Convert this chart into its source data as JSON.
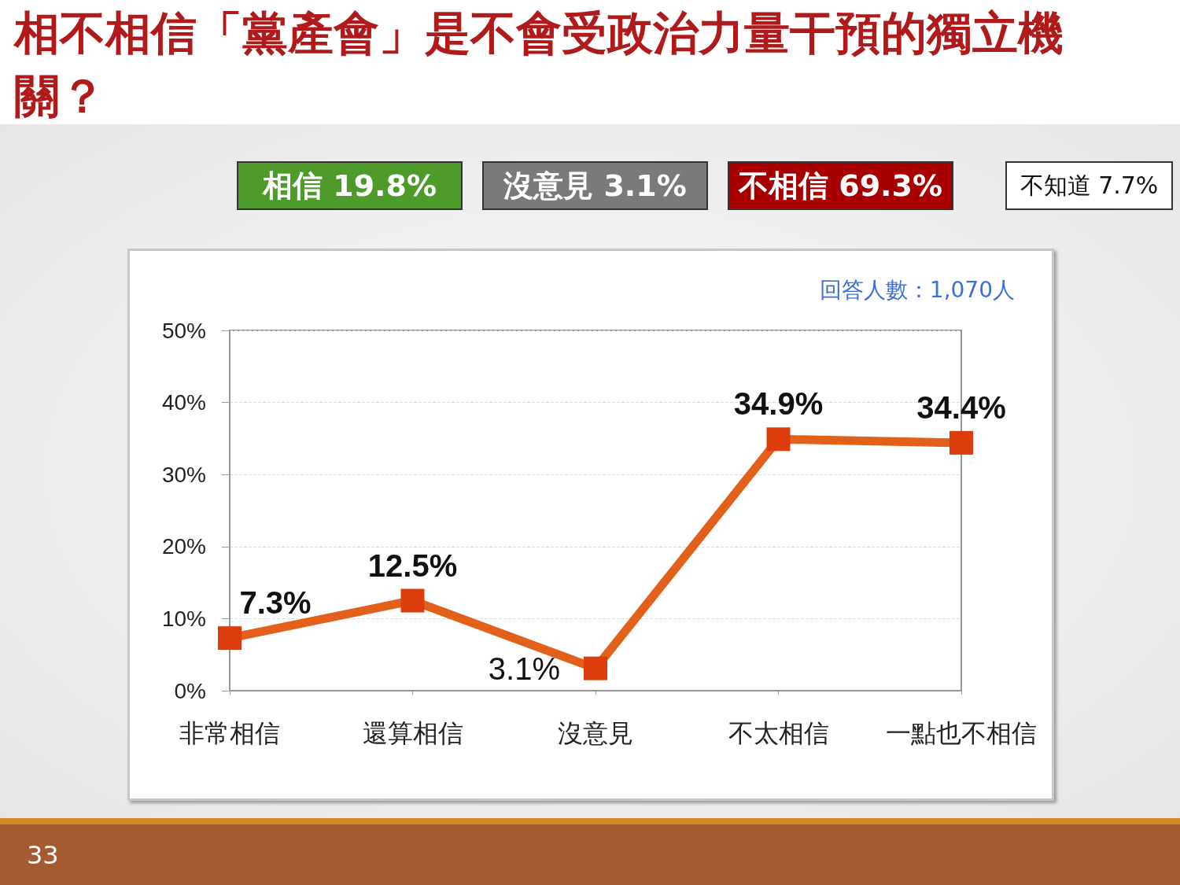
{
  "chart_data": {
    "type": "line",
    "title": "相不相信「黨產會」是不會受政治力量干預的獨立機關？",
    "categories": [
      "非常相信",
      "還算相信",
      "沒意見",
      "不太相信",
      "一點也不相信"
    ],
    "series": [
      {
        "color": "#e2601a",
        "values": [
          7.3,
          12.5,
          3.1,
          34.9,
          34.4
        ],
        "value_labels": [
          "7.3%",
          "12.5%",
          "3.1%",
          "34.9%",
          "34.4%"
        ]
      }
    ],
    "ylim": [
      0,
      50
    ],
    "yticks": [
      {
        "value": 0,
        "label": "0%"
      },
      {
        "value": 10,
        "label": "10%"
      },
      {
        "value": 20,
        "label": "20%"
      },
      {
        "value": 30,
        "label": "30%"
      },
      {
        "value": 40,
        "label": "40%"
      },
      {
        "value": 50,
        "label": "50%"
      }
    ],
    "grid": "y",
    "marker": "square",
    "line_style": "solid",
    "annotations": [
      "相信 19.8%",
      "沒意見 3.1%",
      "不相信 69.3%",
      "不知道 7.7%",
      "回答人數：1,070人",
      "33"
    ]
  }
}
